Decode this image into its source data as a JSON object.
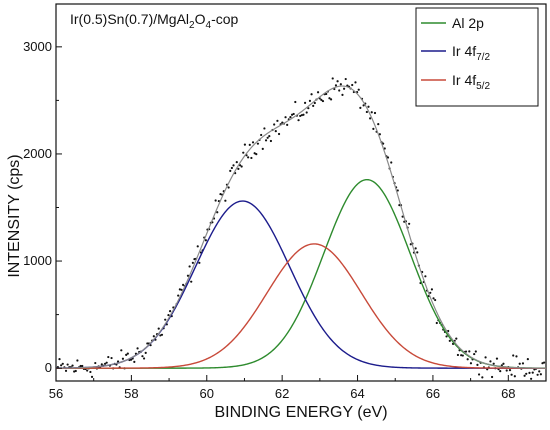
{
  "chart_data": {
    "type": "line",
    "title": "Ir(0.5)Sn(0.7)/MgAl2O4-cop",
    "title_parts": {
      "p1": "Ir(0.5)Sn(0.7)/MgAl",
      "s1": "2",
      "p2": "O",
      "s2": "4",
      "p3": "-cop"
    },
    "xlabel": "BINDING ENERGY (eV)",
    "ylabel": "INTENSITY (cps)",
    "xlim": [
      56,
      69
    ],
    "ylim": [
      -120,
      3400
    ],
    "x_ticks": [
      56,
      58,
      60,
      62,
      64,
      66,
      68
    ],
    "y_ticks": [
      0,
      1000,
      2000,
      3000
    ],
    "legend_position": "top-right",
    "grid": false,
    "series": [
      {
        "name": "Al 2p",
        "label_main": "Al 2p",
        "label_sub": "",
        "color": "#2e8b2e",
        "shape": "gaussian",
        "center": 64.25,
        "amplitude": 1760,
        "sigma": 1.15
      },
      {
        "name": "Ir 4f7/2",
        "label_main": "Ir 4f",
        "label_sub": "7/2",
        "color": "#1c1c8c",
        "shape": "gaussian",
        "center": 60.95,
        "amplitude": 1560,
        "sigma": 1.25
      },
      {
        "name": "Ir 4f5/2",
        "label_main": "Ir 4f",
        "label_sub": "5/2",
        "color": "#c84a3a",
        "shape": "gaussian",
        "center": 62.85,
        "amplitude": 1160,
        "sigma": 1.25
      }
    ],
    "envelope": {
      "color": "#8a8a8a",
      "description": "sum of fitted peaks"
    },
    "scatter": {
      "color": "#111111",
      "x_start": 56.05,
      "x_end": 68.95,
      "count": 300,
      "noise": 70
    }
  }
}
